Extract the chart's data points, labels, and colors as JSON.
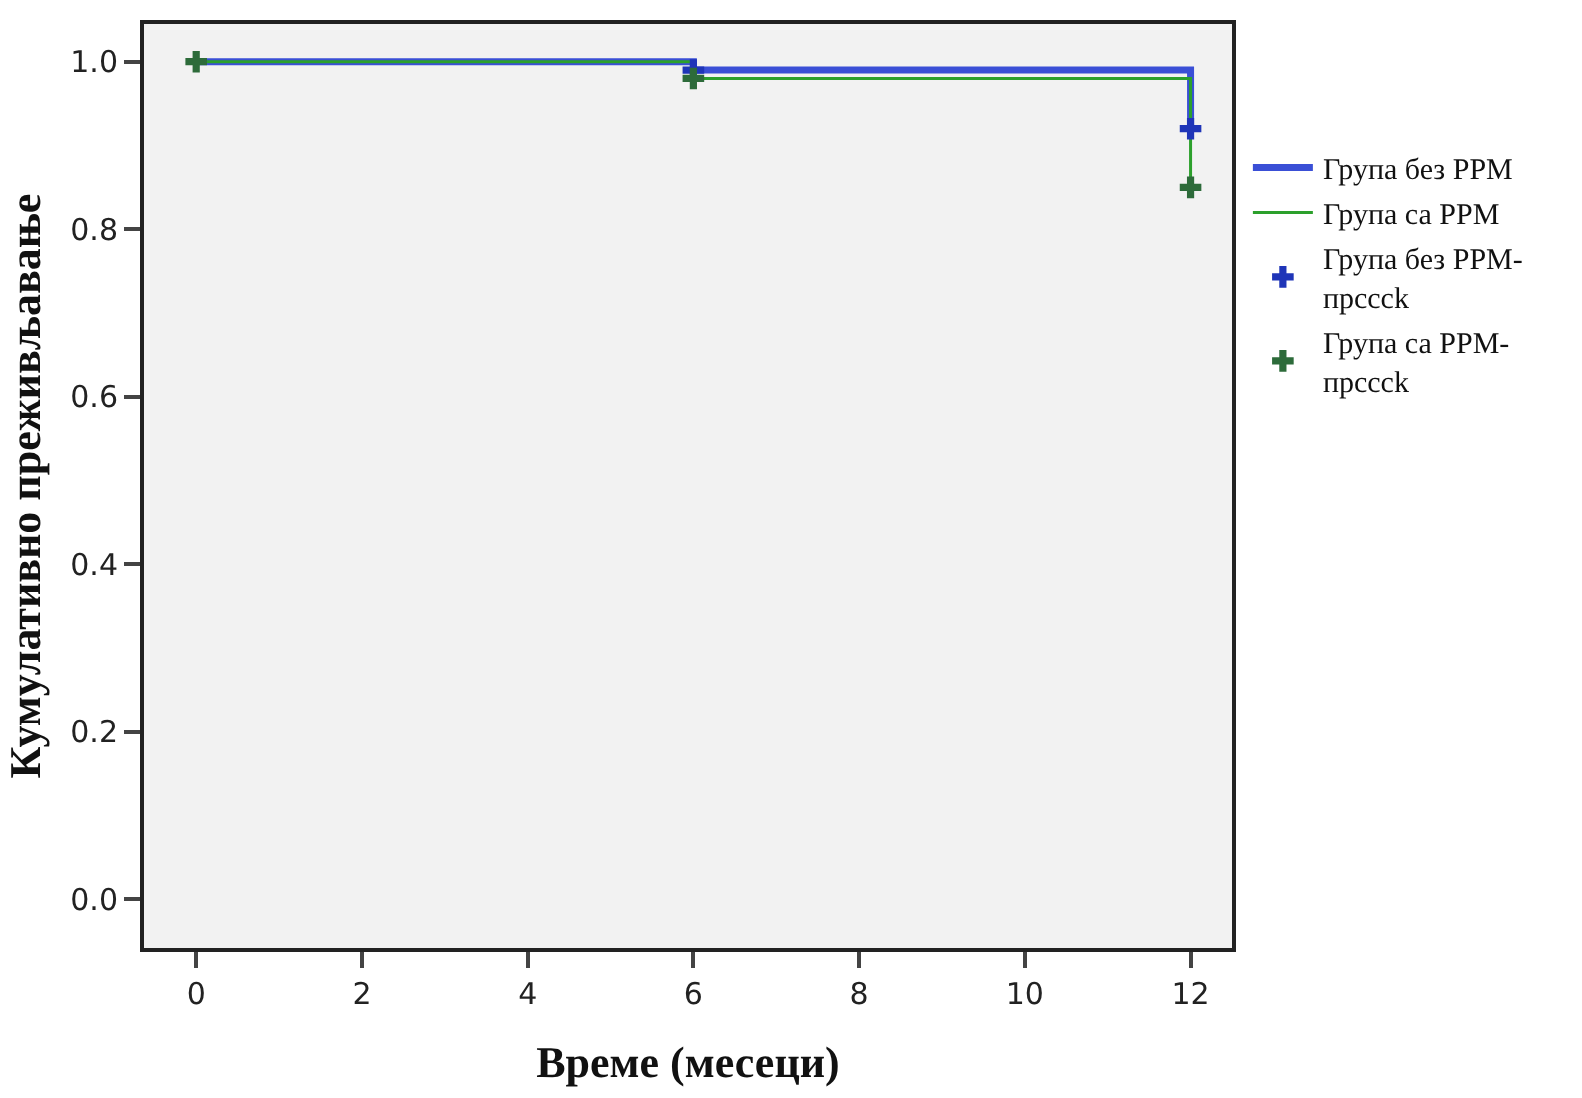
{
  "chart_data": {
    "type": "step",
    "xlabel": "Време (месеци)",
    "ylabel": "Кумулативно преживљавање",
    "xlim": [
      -0.63,
      12.5
    ],
    "ylim": [
      -0.058,
      1.045
    ],
    "xticks": [
      0,
      2,
      4,
      6,
      8,
      10,
      12
    ],
    "yticks": [
      {
        "value": 0,
        "label": "0.0"
      },
      {
        "value": 0.2,
        "label": "0.2"
      },
      {
        "value": 0.4,
        "label": "0.4"
      },
      {
        "value": 0.6,
        "label": "0.6"
      },
      {
        "value": 0.8,
        "label": "0.8"
      },
      {
        "value": 1.0,
        "label": "1.0"
      }
    ],
    "grid": false,
    "legend": "right",
    "line_style": "solid",
    "series": [
      {
        "name": "Група без РРМ",
        "color": "#3a4fd6",
        "x": [
          0,
          6,
          12
        ],
        "values": [
          1.0,
          0.99,
          0.92
        ]
      },
      {
        "name": "Група са РРМ",
        "color": "#2ca02c",
        "x": [
          0,
          6,
          12
        ],
        "values": [
          1.0,
          0.98,
          0.85
        ]
      },
      {
        "name": "Група без РРМ-прсссk",
        "type": "scatter",
        "marker": "cross",
        "color": "#1f35b8",
        "x": [
          6,
          12
        ],
        "values": [
          0.99,
          0.92
        ]
      },
      {
        "name": "Група са РРМ-прсссk",
        "type": "scatter",
        "marker": "cross",
        "color": "#2d6b3a",
        "x": [
          0,
          6,
          12
        ],
        "values": [
          1.0,
          0.98,
          0.85
        ]
      }
    ]
  }
}
